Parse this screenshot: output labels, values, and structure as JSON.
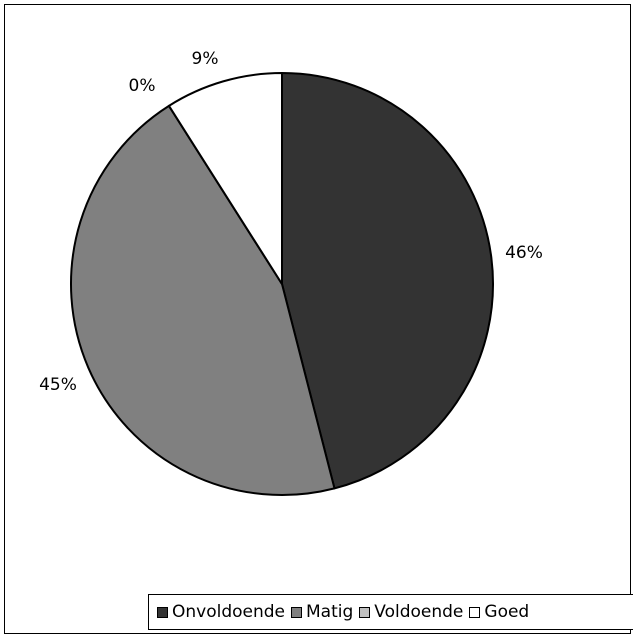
{
  "chart_data": {
    "type": "pie",
    "title": "",
    "categories": [
      "Onvoldoende",
      "Matig",
      "Voldoende",
      "Goed"
    ],
    "values": [
      46,
      45,
      0,
      9
    ],
    "labels": [
      "46%",
      "45%",
      "0%",
      "9%"
    ],
    "colors": [
      "#333333",
      "#808080",
      "#c0c0c0",
      "#ffffff"
    ],
    "start_angle_deg": 0,
    "direction": "clockwise",
    "legend_position": "bottom-right"
  }
}
